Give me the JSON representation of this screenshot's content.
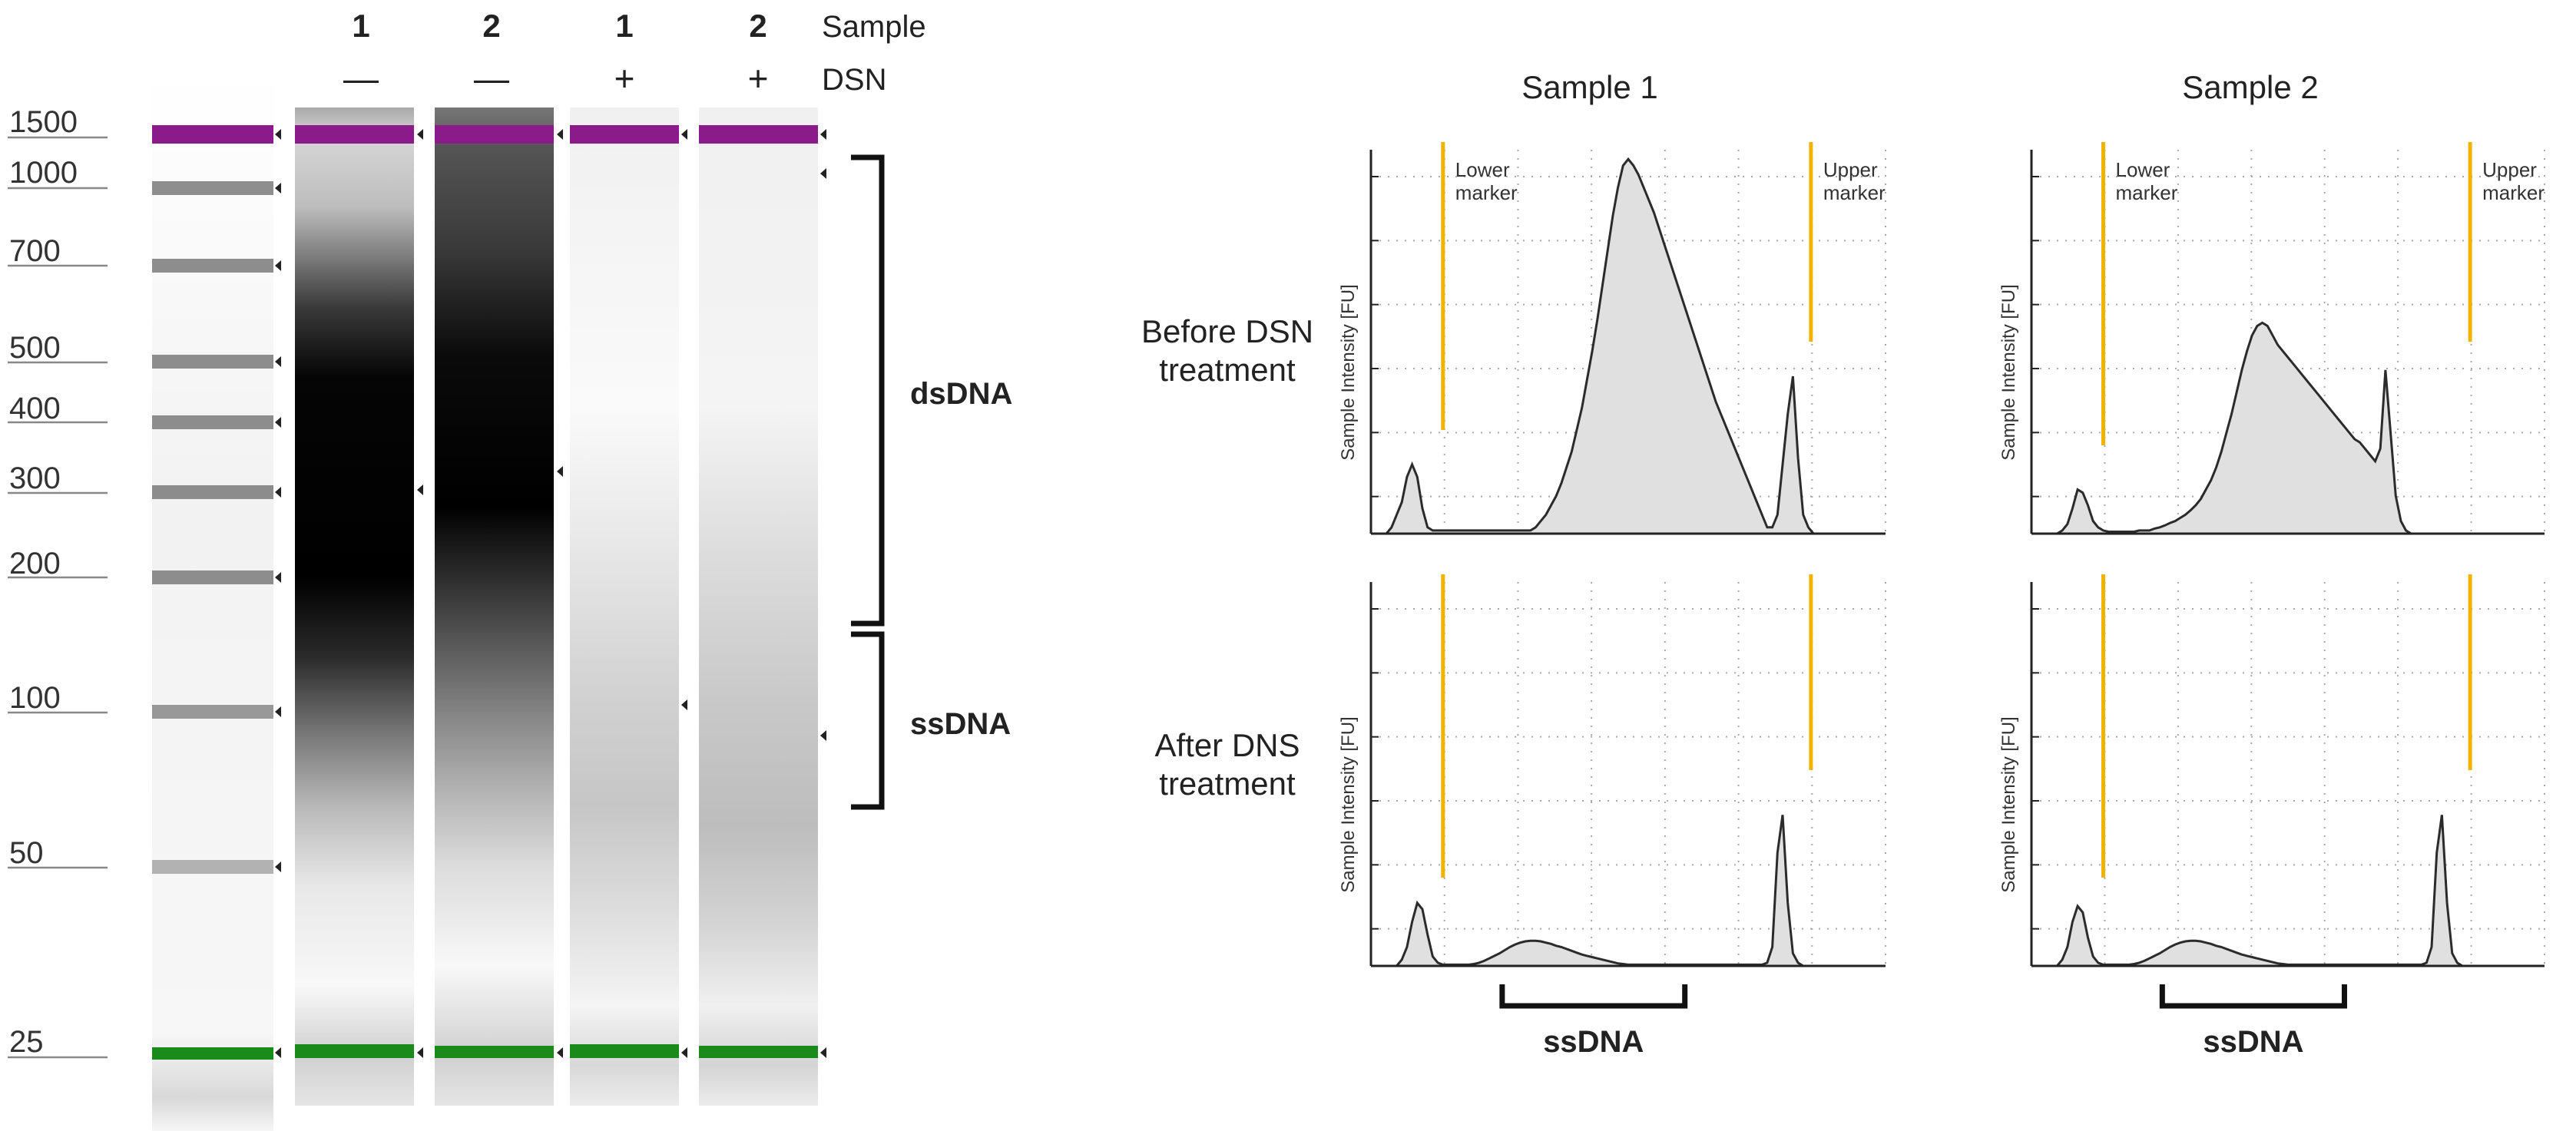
{
  "gel": {
    "header_labels": {
      "sample": "Sample",
      "dsn": "DSN"
    },
    "ladder_sizes": [
      "1500",
      "1000",
      "700",
      "500",
      "400",
      "300",
      "200",
      "100",
      "50",
      "25"
    ],
    "lanes": [
      {
        "sample": "1",
        "dsn": "—"
      },
      {
        "sample": "2",
        "dsn": "—"
      },
      {
        "sample": "1",
        "dsn": "+"
      },
      {
        "sample": "2",
        "dsn": "+"
      }
    ],
    "brackets": [
      {
        "label": "dsDNA"
      },
      {
        "label": "ssDNA"
      }
    ],
    "colors": {
      "upper_marker": "#8b1a8b",
      "lower_marker": "#1a8a1a"
    }
  },
  "chart_data": [
    {
      "type": "area",
      "panel": "sample1-before",
      "column_title": "Sample 1",
      "row_label": "Before DSN treatment",
      "ylabel": "Sample Intensity [FU]",
      "markers": [
        {
          "label": "Lower marker"
        },
        {
          "label": "Upper marker"
        }
      ],
      "x": [
        0,
        1,
        2,
        3,
        4,
        5,
        6,
        7,
        8,
        9,
        10,
        11,
        12,
        13,
        14,
        15,
        16,
        17,
        18,
        19,
        20,
        21,
        22,
        23,
        24,
        25,
        26,
        27,
        28,
        29,
        30,
        31,
        32,
        33,
        34,
        35,
        36,
        37,
        38,
        39,
        40,
        41,
        42,
        43,
        44,
        45,
        46,
        47,
        48,
        49,
        50,
        51,
        52,
        53,
        54,
        55,
        56,
        57,
        58,
        59,
        60,
        61,
        62,
        63,
        64,
        65,
        66,
        67,
        68,
        69,
        70,
        71,
        72,
        73,
        74,
        75,
        76,
        77,
        78,
        79,
        80,
        81,
        82,
        83,
        84,
        85,
        86,
        87,
        88,
        89,
        90,
        91,
        92,
        93,
        94,
        95,
        96,
        97,
        98,
        99,
        100
      ],
      "y": [
        0,
        0,
        0,
        0,
        0.1,
        0.3,
        0.5,
        0.9,
        1.1,
        0.9,
        0.4,
        0.1,
        0.05,
        0.05,
        0.05,
        0.05,
        0.05,
        0.05,
        0.05,
        0.05,
        0.05,
        0.05,
        0.05,
        0.05,
        0.05,
        0.05,
        0.05,
        0.05,
        0.05,
        0.05,
        0.05,
        0.05,
        0.1,
        0.2,
        0.3,
        0.45,
        0.6,
        0.8,
        1.05,
        1.3,
        1.65,
        2.0,
        2.45,
        2.9,
        3.4,
        3.95,
        4.5,
        5.05,
        5.5,
        5.85,
        5.95,
        5.85,
        5.7,
        5.5,
        5.3,
        5.1,
        4.85,
        4.6,
        4.35,
        4.1,
        3.85,
        3.6,
        3.35,
        3.1,
        2.85,
        2.6,
        2.35,
        2.1,
        1.9,
        1.7,
        1.5,
        1.3,
        1.1,
        0.9,
        0.7,
        0.5,
        0.3,
        0.1,
        0.1,
        0.3,
        1.1,
        1.9,
        2.5,
        1.2,
        0.3,
        0.1,
        0,
        0,
        0,
        0,
        0,
        0,
        0,
        0,
        0,
        0,
        0,
        0,
        0,
        0,
        0
      ]
    },
    {
      "type": "area",
      "panel": "sample2-before",
      "column_title": "Sample 2",
      "row_label": "Before DSN treatment",
      "ylabel": "Sample Intensity [FU]",
      "markers": [
        {
          "label": "Lower marker"
        },
        {
          "label": "Upper marker"
        }
      ],
      "x": [
        0,
        1,
        2,
        3,
        4,
        5,
        6,
        7,
        8,
        9,
        10,
        11,
        12,
        13,
        14,
        15,
        16,
        17,
        18,
        19,
        20,
        21,
        22,
        23,
        24,
        25,
        26,
        27,
        28,
        29,
        30,
        31,
        32,
        33,
        34,
        35,
        36,
        37,
        38,
        39,
        40,
        41,
        42,
        43,
        44,
        45,
        46,
        47,
        48,
        49,
        50,
        51,
        52,
        53,
        54,
        55,
        56,
        57,
        58,
        59,
        60,
        61,
        62,
        63,
        64,
        65,
        66,
        67,
        68,
        69,
        70,
        71,
        72,
        73,
        74,
        75,
        76,
        77,
        78,
        79,
        80,
        81,
        82,
        83,
        84,
        85,
        86,
        87,
        88,
        89,
        90,
        91,
        92,
        93,
        94,
        95,
        96,
        97,
        98,
        99,
        100
      ],
      "y": [
        0,
        0,
        0,
        0,
        0,
        0,
        0.05,
        0.15,
        0.4,
        0.7,
        0.65,
        0.45,
        0.2,
        0.1,
        0.05,
        0.03,
        0.03,
        0.03,
        0.03,
        0.03,
        0.03,
        0.05,
        0.05,
        0.05,
        0.08,
        0.1,
        0.13,
        0.17,
        0.2,
        0.25,
        0.3,
        0.37,
        0.45,
        0.55,
        0.7,
        0.85,
        1.05,
        1.3,
        1.6,
        1.9,
        2.25,
        2.6,
        2.9,
        3.15,
        3.3,
        3.35,
        3.3,
        3.15,
        3.0,
        2.9,
        2.8,
        2.7,
        2.6,
        2.5,
        2.4,
        2.3,
        2.2,
        2.1,
        2.0,
        1.9,
        1.8,
        1.7,
        1.6,
        1.5,
        1.45,
        1.35,
        1.25,
        1.15,
        1.35,
        2.6,
        1.6,
        0.6,
        0.2,
        0.05,
        0,
        0,
        0,
        0,
        0,
        0,
        0,
        0,
        0,
        0,
        0,
        0,
        0,
        0,
        0,
        0,
        0,
        0,
        0,
        0,
        0,
        0,
        0,
        0,
        0,
        0,
        0
      ]
    },
    {
      "type": "area",
      "panel": "sample1-after",
      "column_title": "Sample 1",
      "row_label": "After DNS treatment",
      "ylabel": "Sample Intensity [FU]",
      "annotation": "ssDNA",
      "markers": [
        {
          "label": ""
        },
        {
          "label": ""
        }
      ],
      "x": [
        0,
        1,
        2,
        3,
        4,
        5,
        6,
        7,
        8,
        9,
        10,
        11,
        12,
        13,
        14,
        15,
        16,
        17,
        18,
        19,
        20,
        21,
        22,
        23,
        24,
        25,
        26,
        27,
        28,
        29,
        30,
        31,
        32,
        33,
        34,
        35,
        36,
        37,
        38,
        39,
        40,
        41,
        42,
        43,
        44,
        45,
        46,
        47,
        48,
        49,
        50,
        51,
        52,
        53,
        54,
        55,
        56,
        57,
        58,
        59,
        60,
        61,
        62,
        63,
        64,
        65,
        66,
        67,
        68,
        69,
        70,
        71,
        72,
        73,
        74,
        75,
        76,
        77,
        78,
        79,
        80,
        81,
        82,
        83,
        84,
        85,
        86,
        87,
        88,
        89,
        90,
        91,
        92,
        93,
        94,
        95,
        96,
        97,
        98,
        99,
        100
      ],
      "y": [
        0,
        0,
        0,
        0,
        0,
        0,
        0.1,
        0.3,
        0.7,
        1.0,
        0.9,
        0.5,
        0.15,
        0.05,
        0.02,
        0.02,
        0.02,
        0.02,
        0.02,
        0.02,
        0.03,
        0.05,
        0.08,
        0.12,
        0.16,
        0.2,
        0.25,
        0.3,
        0.34,
        0.37,
        0.39,
        0.4,
        0.4,
        0.39,
        0.37,
        0.35,
        0.32,
        0.3,
        0.27,
        0.24,
        0.21,
        0.18,
        0.16,
        0.14,
        0.12,
        0.1,
        0.08,
        0.06,
        0.04,
        0.03,
        0.02,
        0.02,
        0.02,
        0.02,
        0.02,
        0.02,
        0.02,
        0.02,
        0.02,
        0.02,
        0.02,
        0.02,
        0.02,
        0.02,
        0.02,
        0.02,
        0.02,
        0.02,
        0.02,
        0.02,
        0.02,
        0.02,
        0.02,
        0.02,
        0.02,
        0.02,
        0.02,
        0.05,
        0.3,
        1.8,
        2.4,
        1.0,
        0.2,
        0.05,
        0,
        0,
        0,
        0,
        0,
        0,
        0,
        0,
        0,
        0,
        0,
        0,
        0,
        0,
        0,
        0,
        0
      ]
    },
    {
      "type": "area",
      "panel": "sample2-after",
      "column_title": "Sample 2",
      "row_label": "After DNS treatment",
      "ylabel": "Sample Intensity [FU]",
      "annotation": "ssDNA",
      "markers": [
        {
          "label": ""
        },
        {
          "label": ""
        }
      ],
      "x": [
        0,
        1,
        2,
        3,
        4,
        5,
        6,
        7,
        8,
        9,
        10,
        11,
        12,
        13,
        14,
        15,
        16,
        17,
        18,
        19,
        20,
        21,
        22,
        23,
        24,
        25,
        26,
        27,
        28,
        29,
        30,
        31,
        32,
        33,
        34,
        35,
        36,
        37,
        38,
        39,
        40,
        41,
        42,
        43,
        44,
        45,
        46,
        47,
        48,
        49,
        50,
        51,
        52,
        53,
        54,
        55,
        56,
        57,
        58,
        59,
        60,
        61,
        62,
        63,
        64,
        65,
        66,
        67,
        68,
        69,
        70,
        71,
        72,
        73,
        74,
        75,
        76,
        77,
        78,
        79,
        80,
        81,
        82,
        83,
        84,
        85,
        86,
        87,
        88,
        89,
        90,
        91,
        92,
        93,
        94,
        95,
        96,
        97,
        98,
        99,
        100
      ],
      "y": [
        0,
        0,
        0,
        0,
        0,
        0,
        0.1,
        0.3,
        0.7,
        0.95,
        0.85,
        0.45,
        0.15,
        0.05,
        0.02,
        0.02,
        0.02,
        0.02,
        0.02,
        0.02,
        0.03,
        0.05,
        0.08,
        0.12,
        0.16,
        0.2,
        0.25,
        0.3,
        0.34,
        0.37,
        0.39,
        0.4,
        0.4,
        0.39,
        0.37,
        0.35,
        0.32,
        0.3,
        0.27,
        0.24,
        0.21,
        0.18,
        0.16,
        0.14,
        0.12,
        0.1,
        0.08,
        0.06,
        0.04,
        0.03,
        0.02,
        0.02,
        0.02,
        0.02,
        0.02,
        0.02,
        0.02,
        0.02,
        0.02,
        0.02,
        0.02,
        0.02,
        0.02,
        0.02,
        0.02,
        0.02,
        0.02,
        0.02,
        0.02,
        0.02,
        0.02,
        0.02,
        0.02,
        0.02,
        0.02,
        0.02,
        0.02,
        0.05,
        0.3,
        1.8,
        2.4,
        1.0,
        0.2,
        0.05,
        0,
        0,
        0,
        0,
        0,
        0,
        0,
        0,
        0,
        0,
        0,
        0,
        0,
        0,
        0,
        0,
        0
      ]
    }
  ]
}
